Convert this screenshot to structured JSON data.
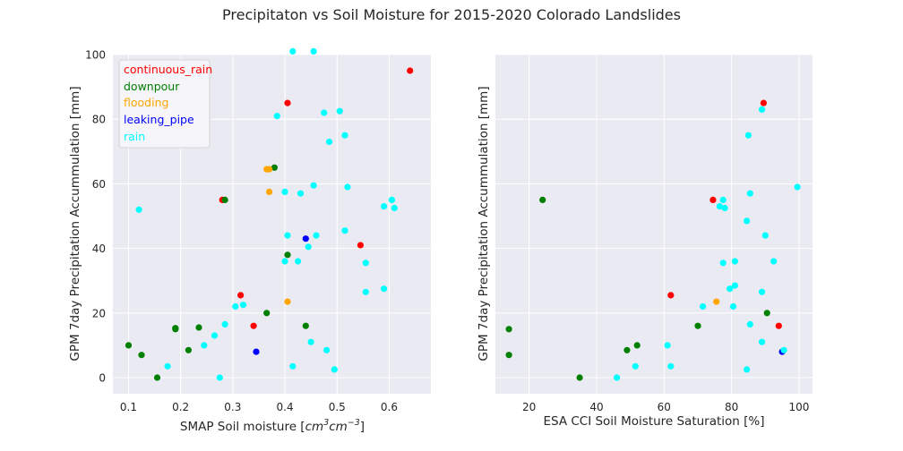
{
  "figure": {
    "title": "Precipitaton vs Soil Moisture for 2015-2020 Colorado Landslides"
  },
  "categories": [
    {
      "name": "continuous_rain",
      "color": "#ff0000"
    },
    {
      "name": "downpour",
      "color": "#008000"
    },
    {
      "name": "flooding",
      "color": "#ffa500"
    },
    {
      "name": "leaking_pipe",
      "color": "#0000ff"
    },
    {
      "name": "rain",
      "color": "#00ffff"
    }
  ],
  "chart_data": [
    {
      "type": "scatter",
      "xlabel": "SMAP Soil moisture [cm^3cm^-3]",
      "ylabel": "GPM 7day Precipitation Accummulation [mm]",
      "xlim": [
        0.07,
        0.68
      ],
      "ylim": [
        -5,
        100
      ],
      "xticks": [
        "0.1",
        "0.2",
        "0.3",
        "0.4",
        "0.5",
        "0.6"
      ],
      "xtick_values": [
        0.1,
        0.2,
        0.3,
        0.4,
        0.5,
        0.6
      ],
      "yticks": [
        "0",
        "20",
        "40",
        "60",
        "80",
        "100"
      ],
      "ytick_values": [
        0,
        20,
        40,
        60,
        80,
        100
      ],
      "legend": "top-left",
      "grid": true,
      "series": [
        {
          "name": "continuous_rain",
          "points": [
            [
              0.28,
              55
            ],
            [
              0.405,
              85
            ],
            [
              0.64,
              95
            ],
            [
              0.545,
              41
            ],
            [
              0.315,
              25.5
            ],
            [
              0.34,
              16
            ]
          ]
        },
        {
          "name": "downpour",
          "points": [
            [
              0.285,
              55
            ],
            [
              0.38,
              65
            ],
            [
              0.405,
              38
            ],
            [
              0.365,
              20
            ],
            [
              0.44,
              16
            ],
            [
              0.1,
              10
            ],
            [
              0.125,
              7
            ],
            [
              0.155,
              0
            ],
            [
              0.19,
              15
            ],
            [
              0.19,
              15.3
            ],
            [
              0.235,
              15.5
            ],
            [
              0.215,
              8.5
            ]
          ]
        },
        {
          "name": "flooding",
          "points": [
            [
              0.365,
              64.5
            ],
            [
              0.37,
              64.5
            ],
            [
              0.37,
              57.5
            ],
            [
              0.405,
              23.5
            ]
          ]
        },
        {
          "name": "leaking_pipe",
          "points": [
            [
              0.44,
              43
            ],
            [
              0.345,
              8
            ]
          ]
        },
        {
          "name": "rain",
          "points": [
            [
              0.415,
              101
            ],
            [
              0.455,
              101
            ],
            [
              0.12,
              52
            ],
            [
              0.385,
              81
            ],
            [
              0.475,
              82
            ],
            [
              0.505,
              82.5
            ],
            [
              0.515,
              75
            ],
            [
              0.485,
              73
            ],
            [
              0.455,
              59.5
            ],
            [
              0.52,
              59
            ],
            [
              0.4,
              57.5
            ],
            [
              0.43,
              57
            ],
            [
              0.605,
              55
            ],
            [
              0.61,
              52.5
            ],
            [
              0.59,
              53
            ],
            [
              0.515,
              45.5
            ],
            [
              0.405,
              44
            ],
            [
              0.46,
              44
            ],
            [
              0.445,
              40.5
            ],
            [
              0.4,
              36
            ],
            [
              0.425,
              36
            ],
            [
              0.555,
              35.5
            ],
            [
              0.59,
              27.5
            ],
            [
              0.555,
              26.5
            ],
            [
              0.305,
              22
            ],
            [
              0.32,
              22.5
            ],
            [
              0.285,
              16.5
            ],
            [
              0.265,
              13
            ],
            [
              0.245,
              10
            ],
            [
              0.175,
              3.5
            ],
            [
              0.275,
              0
            ],
            [
              0.45,
              11
            ],
            [
              0.48,
              8.5
            ],
            [
              0.415,
              3.5
            ],
            [
              0.495,
              2.5
            ]
          ]
        }
      ]
    },
    {
      "type": "scatter",
      "xlabel": "ESA CCI Soil Moisture Saturation [%]",
      "ylabel": "GPM 7day Precipitation Accummulation [mm]",
      "xlim": [
        10,
        104
      ],
      "ylim": [
        -5,
        100
      ],
      "xticks": [
        "20",
        "40",
        "60",
        "80",
        "100"
      ],
      "xtick_values": [
        20,
        40,
        60,
        80,
        100
      ],
      "yticks": [],
      "ytick_values": [
        0,
        20,
        40,
        60,
        80,
        100
      ],
      "grid": true,
      "series": [
        {
          "name": "continuous_rain",
          "points": [
            [
              89.5,
              85
            ],
            [
              74.5,
              55
            ],
            [
              62,
              25.5
            ],
            [
              94,
              16
            ]
          ]
        },
        {
          "name": "downpour",
          "points": [
            [
              24,
              55
            ],
            [
              90.5,
              20
            ],
            [
              70,
              16
            ],
            [
              14,
              15
            ],
            [
              14,
              7
            ],
            [
              52,
              10
            ],
            [
              49,
              8.5
            ],
            [
              35,
              0
            ]
          ]
        },
        {
          "name": "flooding",
          "points": [
            [
              75.5,
              23.5
            ]
          ]
        },
        {
          "name": "leaking_pipe",
          "points": [
            [
              95,
              8
            ]
          ]
        },
        {
          "name": "rain",
          "points": [
            [
              89,
              83
            ],
            [
              85,
              75
            ],
            [
              99.5,
              59
            ],
            [
              85.5,
              57
            ],
            [
              77.5,
              55
            ],
            [
              76.5,
              53
            ],
            [
              78,
              52.5
            ],
            [
              84.5,
              48.5
            ],
            [
              90,
              44
            ],
            [
              77.5,
              35.5
            ],
            [
              81,
              36
            ],
            [
              92.5,
              36
            ],
            [
              81,
              28.5
            ],
            [
              79.5,
              27.5
            ],
            [
              89,
              26.5
            ],
            [
              71.5,
              22
            ],
            [
              80.5,
              22
            ],
            [
              85.5,
              16.5
            ],
            [
              61,
              10
            ],
            [
              89,
              11
            ],
            [
              95.5,
              8.5
            ],
            [
              51.5,
              3.5
            ],
            [
              62,
              3.5
            ],
            [
              46,
              0
            ],
            [
              84.5,
              2.5
            ]
          ]
        }
      ]
    }
  ]
}
